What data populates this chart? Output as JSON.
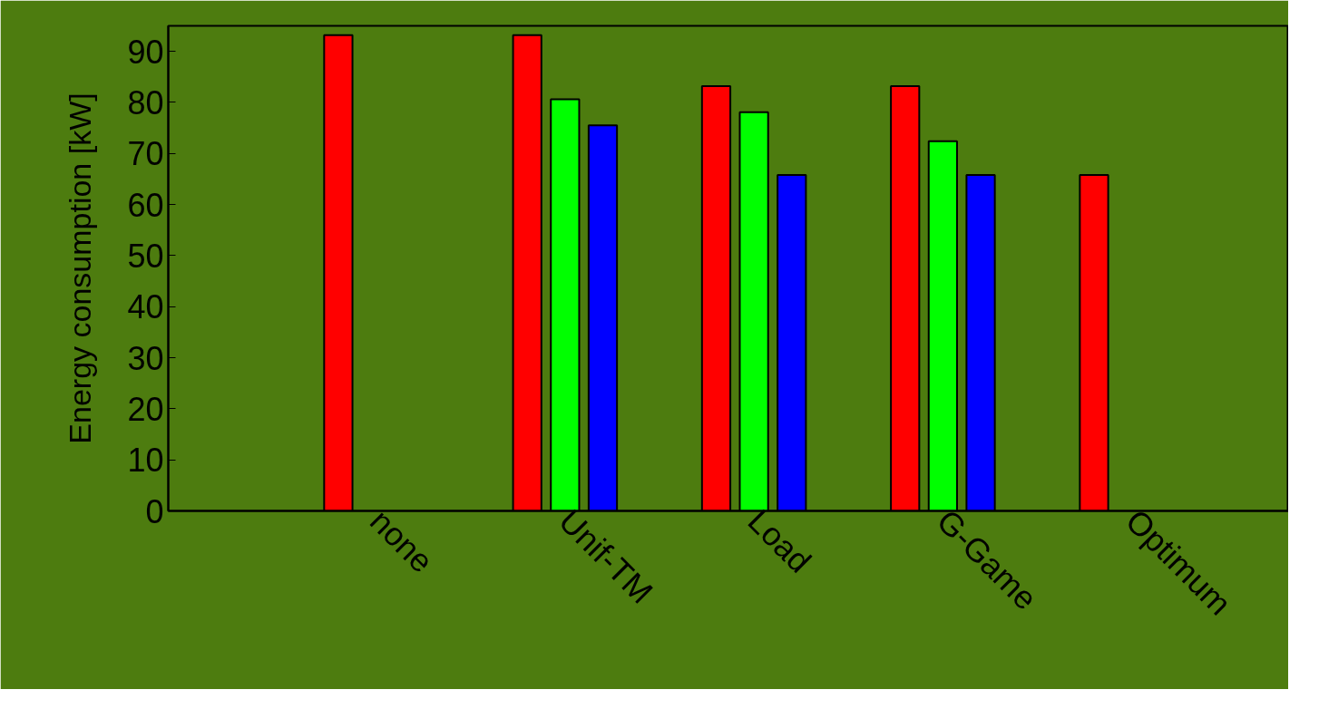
{
  "chart_data": {
    "type": "bar",
    "ylabel": "Energy consumption [kW]",
    "categories": [
      "none",
      "Unif-TM",
      "Load",
      "G-Game",
      "Optimum"
    ],
    "series": [
      {
        "color": "#ff0000",
        "values": [
          93.2,
          93.2,
          83.2,
          83.2,
          65.8
        ]
      },
      {
        "color": "#00ff00",
        "values": [
          null,
          80.6,
          78.1,
          72.4,
          null
        ]
      },
      {
        "color": "#0000ff",
        "values": [
          null,
          75.5,
          65.8,
          65.8,
          null
        ]
      }
    ],
    "ylim": [
      0,
      95
    ],
    "yticks": [
      0,
      10,
      20,
      30,
      40,
      50,
      60,
      70,
      80,
      90
    ],
    "grid": false
  }
}
